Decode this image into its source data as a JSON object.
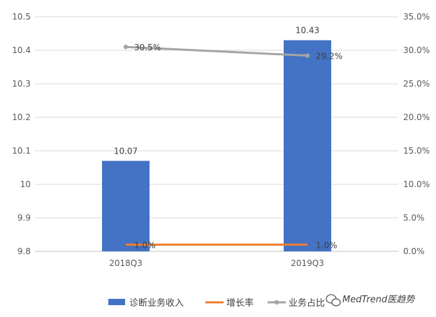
{
  "chart_data": {
    "type": "bar",
    "categories": [
      "2018Q3",
      "2019Q3"
    ],
    "series": [
      {
        "name": "诊断业务收入",
        "type": "bar",
        "axis": "left",
        "values": [
          10.07,
          10.43
        ],
        "labels": [
          "10.07",
          "10.43"
        ],
        "color": "#4472C4"
      },
      {
        "name": "增长率",
        "type": "line",
        "axis": "right",
        "values": [
          1.0,
          1.0
        ],
        "labels": [
          "1.0%",
          "1.0%"
        ],
        "color": "#ED7D31"
      },
      {
        "name": "业务占比",
        "type": "line",
        "axis": "right",
        "values": [
          30.5,
          29.2
        ],
        "labels": [
          "30.5%",
          "29.2%"
        ],
        "color": "#A5A5A5"
      }
    ],
    "y_left": {
      "min": 9.8,
      "max": 10.5,
      "ticks": [
        "9.8",
        "9.9",
        "10",
        "10.1",
        "10.2",
        "10.3",
        "10.4",
        "10.5"
      ]
    },
    "y_right": {
      "min": 0,
      "max": 35,
      "ticks": [
        "0.0%",
        "5.0%",
        "10.0%",
        "15.0%",
        "20.0%",
        "25.0%",
        "30.0%",
        "35.0%"
      ]
    },
    "grid": true,
    "legend_position": "bottom"
  },
  "watermark": {
    "text": "MedTrend医趋势",
    "icon": "wechat-icon"
  }
}
